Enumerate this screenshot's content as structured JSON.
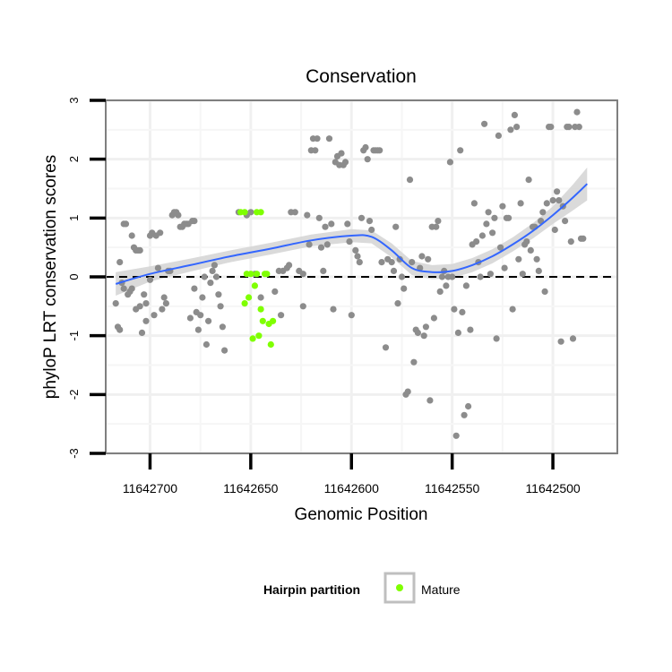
{
  "chart_data": {
    "type": "scatter",
    "title": "Conservation",
    "xlabel": "Genomic Position",
    "ylabel": "phyloP LRT conservation scores",
    "x_reversed": true,
    "xlim": [
      11642722,
      11642468
    ],
    "ylim": [
      -3,
      3
    ],
    "x_ticks": [
      11642700,
      11642650,
      11642600,
      11642550,
      11642500
    ],
    "y_ticks": [
      -3,
      -2,
      -1,
      0,
      1,
      2,
      3
    ],
    "reference_line": {
      "y": 0,
      "style": "dashed"
    },
    "grid": true,
    "legend": {
      "title": "Hairpin partition",
      "position": "bottom",
      "entries": [
        {
          "label": "Mature",
          "color": "#7fff00"
        }
      ]
    },
    "colors": {
      "other": "#8c8c8c",
      "mature": "#7fff00",
      "smooth": "#3366ff",
      "band": "#d3d3d3"
    },
    "series": [
      {
        "group": "other",
        "points": [
          [
            11642717,
            -0.45
          ],
          [
            11642716,
            -0.85
          ],
          [
            11642715,
            0.25
          ],
          [
            11642715,
            -0.9
          ],
          [
            11642714,
            -0.1
          ],
          [
            11642713,
            0.9
          ],
          [
            11642713,
            -0.2
          ],
          [
            11642712,
            0.9
          ],
          [
            11642711,
            -0.3
          ],
          [
            11642710,
            -0.25
          ],
          [
            11642709,
            0.7
          ],
          [
            11642709,
            -0.2
          ],
          [
            11642708,
            0.5
          ],
          [
            11642707,
            0.45
          ],
          [
            11642707,
            -0.55
          ],
          [
            11642706,
            0.45
          ],
          [
            11642705,
            -0.5
          ],
          [
            11642705,
            0.45
          ],
          [
            11642704,
            -0.95
          ],
          [
            11642703,
            -0.3
          ],
          [
            11642702,
            -0.45
          ],
          [
            11642702,
            -0.75
          ],
          [
            11642700,
            0.7
          ],
          [
            11642700,
            -0.05
          ],
          [
            11642699,
            0.75
          ],
          [
            11642698,
            -0.65
          ],
          [
            11642697,
            0.7
          ],
          [
            11642696,
            0.15
          ],
          [
            11642695,
            0.75
          ],
          [
            11642694,
            -0.55
          ],
          [
            11642693,
            -0.35
          ],
          [
            11642692,
            -0.45
          ],
          [
            11642691,
            0.1
          ],
          [
            11642690,
            0.1
          ],
          [
            11642689,
            1.05
          ],
          [
            11642688,
            1.1
          ],
          [
            11642687,
            1.1
          ],
          [
            11642686,
            1.05
          ],
          [
            11642685,
            0.85
          ],
          [
            11642684,
            0.85
          ],
          [
            11642683,
            0.9
          ],
          [
            11642682,
            0.9
          ],
          [
            11642681,
            0.9
          ],
          [
            11642680,
            -0.7
          ],
          [
            11642679,
            0.95
          ],
          [
            11642678,
            0.95
          ],
          [
            11642678,
            -0.2
          ],
          [
            11642677,
            -0.6
          ],
          [
            11642676,
            -0.9
          ],
          [
            11642675,
            -0.65
          ],
          [
            11642674,
            -0.35
          ],
          [
            11642673,
            0.0
          ],
          [
            11642672,
            -1.15
          ],
          [
            11642671,
            -0.75
          ],
          [
            11642670,
            -0.1
          ],
          [
            11642669,
            0.1
          ],
          [
            11642668,
            0.2
          ],
          [
            11642667,
            0.0
          ],
          [
            11642666,
            -0.3
          ],
          [
            11642665,
            -0.5
          ],
          [
            11642664,
            -0.85
          ],
          [
            11642663,
            -1.25
          ],
          [
            11642656,
            1.1
          ],
          [
            11642652,
            1.05
          ],
          [
            11642650,
            1.1
          ],
          [
            11642648,
            0.05
          ],
          [
            11642645,
            -0.35
          ],
          [
            11642638,
            -0.25
          ],
          [
            11642636,
            0.1
          ],
          [
            11642635,
            -0.65
          ],
          [
            11642634,
            0.1
          ],
          [
            11642632,
            0.15
          ],
          [
            11642631,
            0.2
          ],
          [
            11642630,
            1.1
          ],
          [
            11642628,
            1.1
          ],
          [
            11642626,
            0.1
          ],
          [
            11642624,
            0.05
          ],
          [
            11642624,
            -0.5
          ],
          [
            11642622,
            1.05
          ],
          [
            11642621,
            0.55
          ],
          [
            11642620,
            2.15
          ],
          [
            11642619,
            2.35
          ],
          [
            11642618,
            2.15
          ],
          [
            11642617,
            2.35
          ],
          [
            11642616,
            1.0
          ],
          [
            11642615,
            0.5
          ],
          [
            11642614,
            0.1
          ],
          [
            11642613,
            0.85
          ],
          [
            11642612,
            0.55
          ],
          [
            11642611,
            2.35
          ],
          [
            11642610,
            0.9
          ],
          [
            11642609,
            -0.55
          ],
          [
            11642608,
            1.95
          ],
          [
            11642607,
            2.05
          ],
          [
            11642606,
            1.9
          ],
          [
            11642605,
            2.1
          ],
          [
            11642604,
            1.9
          ],
          [
            11642603,
            1.95
          ],
          [
            11642602,
            0.9
          ],
          [
            11642601,
            0.6
          ],
          [
            11642600,
            -0.65
          ],
          [
            11642598,
            0.45
          ],
          [
            11642597,
            0.35
          ],
          [
            11642596,
            0.25
          ],
          [
            11642595,
            1.0
          ],
          [
            11642594,
            2.15
          ],
          [
            11642593,
            2.2
          ],
          [
            11642592,
            2.0
          ],
          [
            11642591,
            0.95
          ],
          [
            11642590,
            0.8
          ],
          [
            11642589,
            2.15
          ],
          [
            11642588,
            2.15
          ],
          [
            11642587,
            2.15
          ],
          [
            11642586,
            2.15
          ],
          [
            11642585,
            0.25
          ],
          [
            11642583,
            -1.2
          ],
          [
            11642582,
            0.3
          ],
          [
            11642580,
            0.25
          ],
          [
            11642579,
            0.1
          ],
          [
            11642578,
            0.85
          ],
          [
            11642577,
            -0.45
          ],
          [
            11642576,
            0.3
          ],
          [
            11642575,
            0.0
          ],
          [
            11642574,
            -0.2
          ],
          [
            11642573,
            -2.0
          ],
          [
            11642572,
            -1.95
          ],
          [
            11642571,
            1.65
          ],
          [
            11642570,
            0.25
          ],
          [
            11642569,
            -1.45
          ],
          [
            11642568,
            -0.9
          ],
          [
            11642567,
            -0.95
          ],
          [
            11642566,
            0.15
          ],
          [
            11642565,
            0.35
          ],
          [
            11642564,
            -1.0
          ],
          [
            11642563,
            -0.85
          ],
          [
            11642562,
            0.3
          ],
          [
            11642561,
            -2.1
          ],
          [
            11642560,
            0.85
          ],
          [
            11642559,
            -0.7
          ],
          [
            11642558,
            0.85
          ],
          [
            11642557,
            0.95
          ],
          [
            11642556,
            -0.25
          ],
          [
            11642555,
            0.0
          ],
          [
            11642554,
            0.1
          ],
          [
            11642553,
            -0.15
          ],
          [
            11642552,
            0.0
          ],
          [
            11642551,
            1.95
          ],
          [
            11642550,
            0.0
          ],
          [
            11642549,
            -0.55
          ],
          [
            11642548,
            -2.7
          ],
          [
            11642547,
            -0.95
          ],
          [
            11642546,
            2.15
          ],
          [
            11642545,
            -0.6
          ],
          [
            11642544,
            -2.35
          ],
          [
            11642543,
            -0.15
          ],
          [
            11642542,
            -2.2
          ],
          [
            11642541,
            -0.9
          ],
          [
            11642540,
            0.55
          ],
          [
            11642539,
            1.25
          ],
          [
            11642538,
            0.6
          ],
          [
            11642537,
            0.25
          ],
          [
            11642536,
            0.0
          ],
          [
            11642535,
            0.7
          ],
          [
            11642534,
            2.6
          ],
          [
            11642533,
            0.9
          ],
          [
            11642532,
            1.1
          ],
          [
            11642531,
            0.05
          ],
          [
            11642530,
            0.75
          ],
          [
            11642529,
            1.0
          ],
          [
            11642528,
            -1.05
          ],
          [
            11642527,
            2.4
          ],
          [
            11642526,
            0.5
          ],
          [
            11642525,
            1.2
          ],
          [
            11642524,
            0.15
          ],
          [
            11642523,
            1.0
          ],
          [
            11642522,
            1.0
          ],
          [
            11642521,
            2.5
          ],
          [
            11642520,
            -0.55
          ],
          [
            11642519,
            2.75
          ],
          [
            11642518,
            2.55
          ],
          [
            11642517,
            0.3
          ],
          [
            11642516,
            1.25
          ],
          [
            11642515,
            0.05
          ],
          [
            11642514,
            0.55
          ],
          [
            11642513,
            0.6
          ],
          [
            11642512,
            1.65
          ],
          [
            11642511,
            0.45
          ],
          [
            11642510,
            0.85
          ],
          [
            11642509,
            0.85
          ],
          [
            11642508,
            0.3
          ],
          [
            11642507,
            0.1
          ],
          [
            11642506,
            0.95
          ],
          [
            11642505,
            1.1
          ],
          [
            11642504,
            -0.25
          ],
          [
            11642503,
            1.25
          ],
          [
            11642502,
            2.55
          ],
          [
            11642501,
            2.55
          ],
          [
            11642500,
            1.3
          ],
          [
            11642499,
            0.8
          ],
          [
            11642498,
            1.45
          ],
          [
            11642497,
            1.3
          ],
          [
            11642496,
            -1.1
          ],
          [
            11642495,
            1.2
          ],
          [
            11642494,
            0.95
          ],
          [
            11642493,
            2.55
          ],
          [
            11642492,
            2.55
          ],
          [
            11642491,
            0.6
          ],
          [
            11642490,
            -1.05
          ],
          [
            11642489,
            2.55
          ],
          [
            11642488,
            2.8
          ],
          [
            11642487,
            2.55
          ],
          [
            11642486,
            0.65
          ],
          [
            11642485,
            0.65
          ]
        ]
      },
      {
        "group": "Mature",
        "points": [
          [
            11642655,
            1.1
          ],
          [
            11642653,
            1.1
          ],
          [
            11642647,
            1.1
          ],
          [
            11642645,
            1.1
          ],
          [
            11642653,
            -0.45
          ],
          [
            11642652,
            0.05
          ],
          [
            11642651,
            -0.35
          ],
          [
            11642650,
            0.05
          ],
          [
            11642649,
            -1.05
          ],
          [
            11642648,
            -0.15
          ],
          [
            11642647,
            0.05
          ],
          [
            11642646,
            -1.0
          ],
          [
            11642645,
            -0.55
          ],
          [
            11642644,
            -0.75
          ],
          [
            11642643,
            0.05
          ],
          [
            11642642,
            0.05
          ],
          [
            11642641,
            -0.8
          ],
          [
            11642640,
            -1.15
          ],
          [
            11642639,
            -0.75
          ]
        ]
      }
    ],
    "smooth": {
      "type": "loess",
      "x": [
        11642717,
        11642700,
        11642680,
        11642660,
        11642640,
        11642620,
        11642600,
        11642590,
        11642580,
        11642570,
        11642560,
        11642550,
        11642540,
        11642530,
        11642520,
        11642510,
        11642500,
        11642490,
        11642483
      ],
      "y": [
        -0.12,
        0.05,
        0.2,
        0.35,
        0.48,
        0.62,
        0.7,
        0.68,
        0.45,
        0.15,
        0.08,
        0.1,
        0.2,
        0.35,
        0.55,
        0.78,
        1.05,
        1.35,
        1.58
      ],
      "band_halfwidth": [
        0.2,
        0.13,
        0.11,
        0.1,
        0.1,
        0.1,
        0.11,
        0.11,
        0.12,
        0.12,
        0.12,
        0.12,
        0.12,
        0.12,
        0.12,
        0.13,
        0.15,
        0.22,
        0.28
      ]
    }
  }
}
